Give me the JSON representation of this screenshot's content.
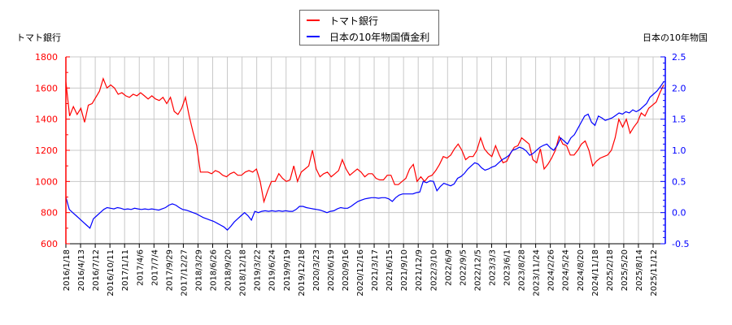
{
  "chart_data": {
    "type": "line",
    "title": "",
    "legend": {
      "position": "top-center",
      "entries": [
        {
          "label": "トマト銀行",
          "color": "#ff0000"
        },
        {
          "label": "日本の10年物国債金利",
          "color": "#0000ff"
        }
      ]
    },
    "left_axis": {
      "title": "トマト銀行",
      "color": "#ff0000",
      "ylim": [
        600,
        1800
      ],
      "ticks": [
        "1800",
        "1600",
        "1400",
        "1200",
        "1000",
        "800",
        "600"
      ]
    },
    "right_axis": {
      "title": "日本の10年物国",
      "color": "#0000ff",
      "ylim": [
        -0.5,
        2.5
      ],
      "ticks": [
        "2.5",
        "2.0",
        "1.5",
        "1.0",
        "0.5",
        "0.0",
        "-0.5"
      ]
    },
    "x_tick_labels": [
      "2016/1/18",
      "2016/4/13",
      "2016/7/12",
      "2016/10/11",
      "2017/1/11",
      "2017/4/6",
      "2017/7/4",
      "2017/9/29",
      "2017/12/27",
      "2018/3/29",
      "2018/6/26",
      "2018/9/20",
      "2018/12/18",
      "2019/3/22",
      "2019/6/24",
      "2019/9/19",
      "2019/12/18",
      "2020/3/23",
      "2020/6/19",
      "2020/9/16",
      "2020/12/16",
      "2021/3/17",
      "2021/6/15",
      "2021/9/10",
      "2021/12/9",
      "2022/3/10",
      "2022/6/9",
      "2022/9/5",
      "2022/12/5",
      "2023/3/3",
      "2023/6/1",
      "2023/8/28",
      "2023/11/24",
      "2024/2/26",
      "2024/5/24",
      "2024/8/20",
      "2024/11/18",
      "2025/2/18",
      "2025/5/20",
      "2025/8/14",
      "2025/11/12"
    ],
    "grid": true,
    "series": [
      {
        "name": "トマト銀行",
        "axis": "left",
        "color": "#ff0000",
        "values": [
          1640,
          1420,
          1480,
          1430,
          1470,
          1380,
          1490,
          1500,
          1540,
          1580,
          1660,
          1600,
          1620,
          1600,
          1560,
          1570,
          1550,
          1540,
          1560,
          1550,
          1570,
          1550,
          1530,
          1550,
          1530,
          1520,
          1540,
          1500,
          1540,
          1450,
          1430,
          1470,
          1540,
          1420,
          1320,
          1230,
          1060,
          1060,
          1060,
          1050,
          1070,
          1060,
          1040,
          1030,
          1050,
          1060,
          1040,
          1040,
          1060,
          1070,
          1060,
          1080,
          1000,
          870,
          940,
          1000,
          1000,
          1050,
          1020,
          1000,
          1010,
          1100,
          1000,
          1060,
          1080,
          1100,
          1200,
          1080,
          1030,
          1050,
          1060,
          1030,
          1050,
          1070,
          1140,
          1080,
          1040,
          1060,
          1080,
          1060,
          1030,
          1050,
          1050,
          1020,
          1010,
          1010,
          1040,
          1040,
          980,
          980,
          1000,
          1020,
          1080,
          1110,
          1000,
          1030,
          1000,
          1030,
          1040,
          1070,
          1110,
          1160,
          1150,
          1170,
          1210,
          1240,
          1200,
          1140,
          1160,
          1160,
          1200,
          1280,
          1210,
          1180,
          1160,
          1230,
          1170,
          1120,
          1130,
          1180,
          1220,
          1230,
          1280,
          1260,
          1240,
          1140,
          1120,
          1210,
          1080,
          1110,
          1150,
          1200,
          1290,
          1240,
          1230,
          1170,
          1170,
          1200,
          1240,
          1260,
          1200,
          1100,
          1130,
          1150,
          1160,
          1170,
          1200,
          1280,
          1400,
          1350,
          1400,
          1310,
          1350,
          1380,
          1440,
          1420,
          1470,
          1490,
          1510,
          1570,
          1620
        ]
      },
      {
        "name": "日本の10年物国債金利",
        "axis": "right",
        "color": "#0000ff",
        "values": [
          0.25,
          0.05,
          0.0,
          -0.05,
          -0.1,
          -0.15,
          -0.2,
          -0.25,
          -0.1,
          -0.05,
          0.0,
          0.05,
          0.08,
          0.07,
          0.06,
          0.08,
          0.07,
          0.05,
          0.06,
          0.05,
          0.07,
          0.06,
          0.05,
          0.06,
          0.05,
          0.06,
          0.05,
          0.04,
          0.06,
          0.08,
          0.12,
          0.14,
          0.12,
          0.08,
          0.05,
          0.04,
          0.02,
          0.0,
          -0.02,
          -0.05,
          -0.08,
          -0.1,
          -0.12,
          -0.14,
          -0.17,
          -0.2,
          -0.23,
          -0.28,
          -0.22,
          -0.15,
          -0.1,
          -0.05,
          0.0,
          -0.05,
          -0.12,
          0.02,
          0.0,
          0.02,
          0.03,
          0.02,
          0.03,
          0.02,
          0.03,
          0.02,
          0.03,
          0.02,
          0.02,
          0.05,
          0.1,
          0.1,
          0.08,
          0.07,
          0.06,
          0.05,
          0.04,
          0.02,
          0.0,
          0.02,
          0.03,
          0.06,
          0.08,
          0.07,
          0.07,
          0.1,
          0.14,
          0.18,
          0.2,
          0.22,
          0.23,
          0.24,
          0.24,
          0.23,
          0.24,
          0.24,
          0.22,
          0.18,
          0.24,
          0.28,
          0.3,
          0.3,
          0.3,
          0.3,
          0.32,
          0.33,
          0.5,
          0.48,
          0.51,
          0.5,
          0.35,
          0.42,
          0.47,
          0.45,
          0.43,
          0.46,
          0.55,
          0.58,
          0.63,
          0.7,
          0.75,
          0.8,
          0.78,
          0.72,
          0.68,
          0.7,
          0.73,
          0.75,
          0.8,
          0.85,
          0.88,
          0.92,
          1.0,
          1.02,
          1.05,
          1.03,
          0.99,
          0.92,
          0.95,
          1.0,
          1.05,
          1.08,
          1.1,
          1.04,
          1.0,
          1.08,
          1.2,
          1.15,
          1.1,
          1.2,
          1.25,
          1.35,
          1.45,
          1.55,
          1.58,
          1.45,
          1.4,
          1.55,
          1.52,
          1.48,
          1.5,
          1.52,
          1.56,
          1.6,
          1.58,
          1.62,
          1.6,
          1.65,
          1.62,
          1.65,
          1.7,
          1.75,
          1.85,
          1.9,
          1.95,
          2.02,
          2.1
        ]
      }
    ]
  }
}
